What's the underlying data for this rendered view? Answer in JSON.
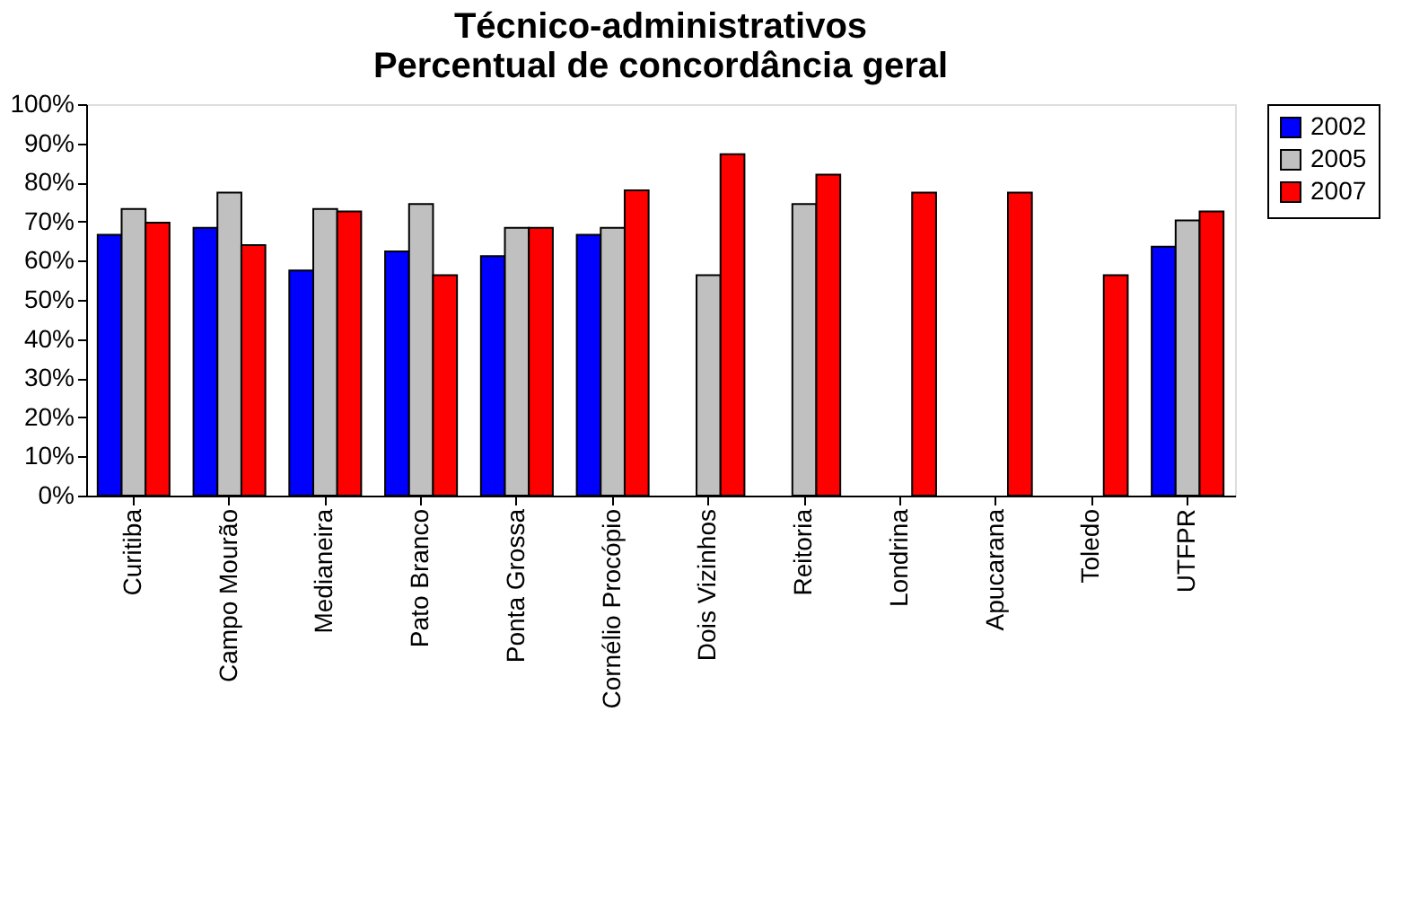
{
  "chart_data": {
    "type": "bar",
    "title": [
      "Técnico-administrativos",
      "Percentual de concordância geral"
    ],
    "categories": [
      "Curitiba",
      "Campo Mourão",
      "Medianeira",
      "Pato Branco",
      "Ponta Grossa",
      "Cornélio Procópio",
      "Dois Vizinhos",
      "Reitoria",
      "Londrina",
      "Apucarana",
      "Toledo",
      "UTFPR"
    ],
    "series": [
      {
        "name": "2002",
        "color": "#0000ff",
        "values": [
          66.6,
          68.4,
          57.5,
          62.4,
          61.2,
          66.6,
          null,
          null,
          null,
          null,
          null,
          63.6
        ]
      },
      {
        "name": "2005",
        "color": "#c0c0c0",
        "values": [
          73.2,
          77.4,
          73.2,
          74.5,
          68.4,
          68.4,
          56.3,
          74.5,
          null,
          null,
          null,
          70.3
        ]
      },
      {
        "name": "2007",
        "color": "#ff0000",
        "values": [
          69.7,
          64.0,
          72.6,
          56.3,
          68.4,
          78.0,
          87.2,
          82.0,
          77.4,
          77.4,
          56.3,
          72.6
        ]
      }
    ],
    "ylim": [
      0,
      100
    ],
    "yticks": [
      {
        "value": 0,
        "label": "0%"
      },
      {
        "value": 10,
        "label": "10%"
      },
      {
        "value": 20,
        "label": "20%"
      },
      {
        "value": 30,
        "label": "30%"
      },
      {
        "value": 40,
        "label": "40%"
      },
      {
        "value": 50,
        "label": "50%"
      },
      {
        "value": 60,
        "label": "60%"
      },
      {
        "value": 70,
        "label": "70%"
      },
      {
        "value": 80,
        "label": "80%"
      },
      {
        "value": 90,
        "label": "90%"
      },
      {
        "value": 100,
        "label": "100%"
      }
    ],
    "legend": "right",
    "grid": false
  }
}
